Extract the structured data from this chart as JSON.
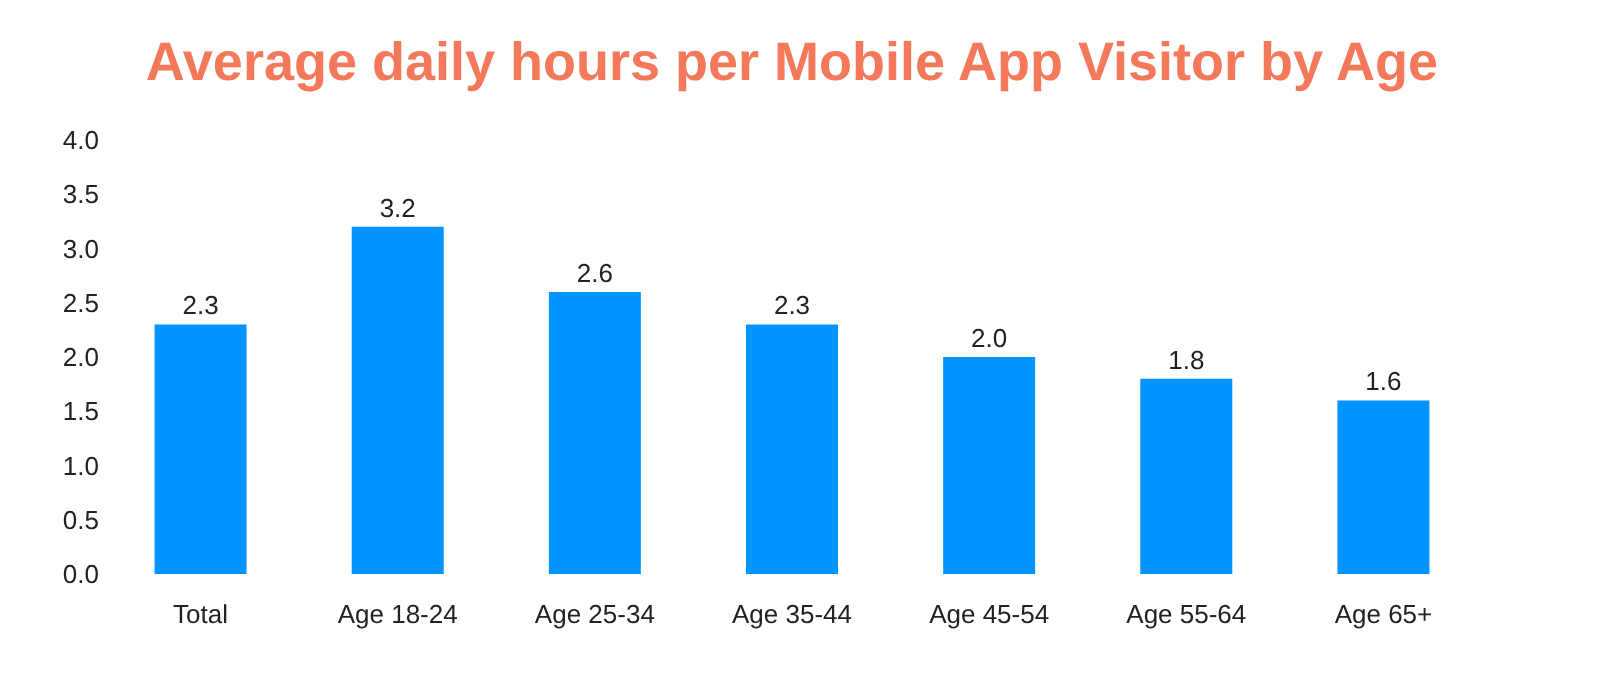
{
  "chart_data": {
    "type": "bar",
    "title": "Average daily hours per Mobile App Visitor by Age",
    "categories": [
      "Total",
      "Age 18-24",
      "Age 25-34",
      "Age 35-44",
      "Age 45-54",
      "Age 55-64",
      "Age 65+"
    ],
    "values": [
      2.3,
      3.2,
      2.6,
      2.3,
      2.0,
      1.8,
      1.6
    ],
    "color": "#0094ff",
    "ylim": [
      0,
      4
    ],
    "yticks": [
      {
        "value": 0,
        "label": "0.0"
      },
      {
        "value": 0.5,
        "label": "0.5"
      },
      {
        "value": 1,
        "label": "1.0"
      },
      {
        "value": 1.5,
        "label": "1.5"
      },
      {
        "value": 2,
        "label": "2.0"
      },
      {
        "value": 2.5,
        "label": "2.5"
      },
      {
        "value": 3,
        "label": "3.0"
      },
      {
        "value": 3.5,
        "label": "3.5"
      },
      {
        "value": 4,
        "label": "4.0"
      }
    ],
    "value_labels": [
      "2.3",
      "3.2",
      "2.6",
      "2.3",
      "2.0",
      "1.8",
      "1.6"
    ],
    "grid": false
  }
}
